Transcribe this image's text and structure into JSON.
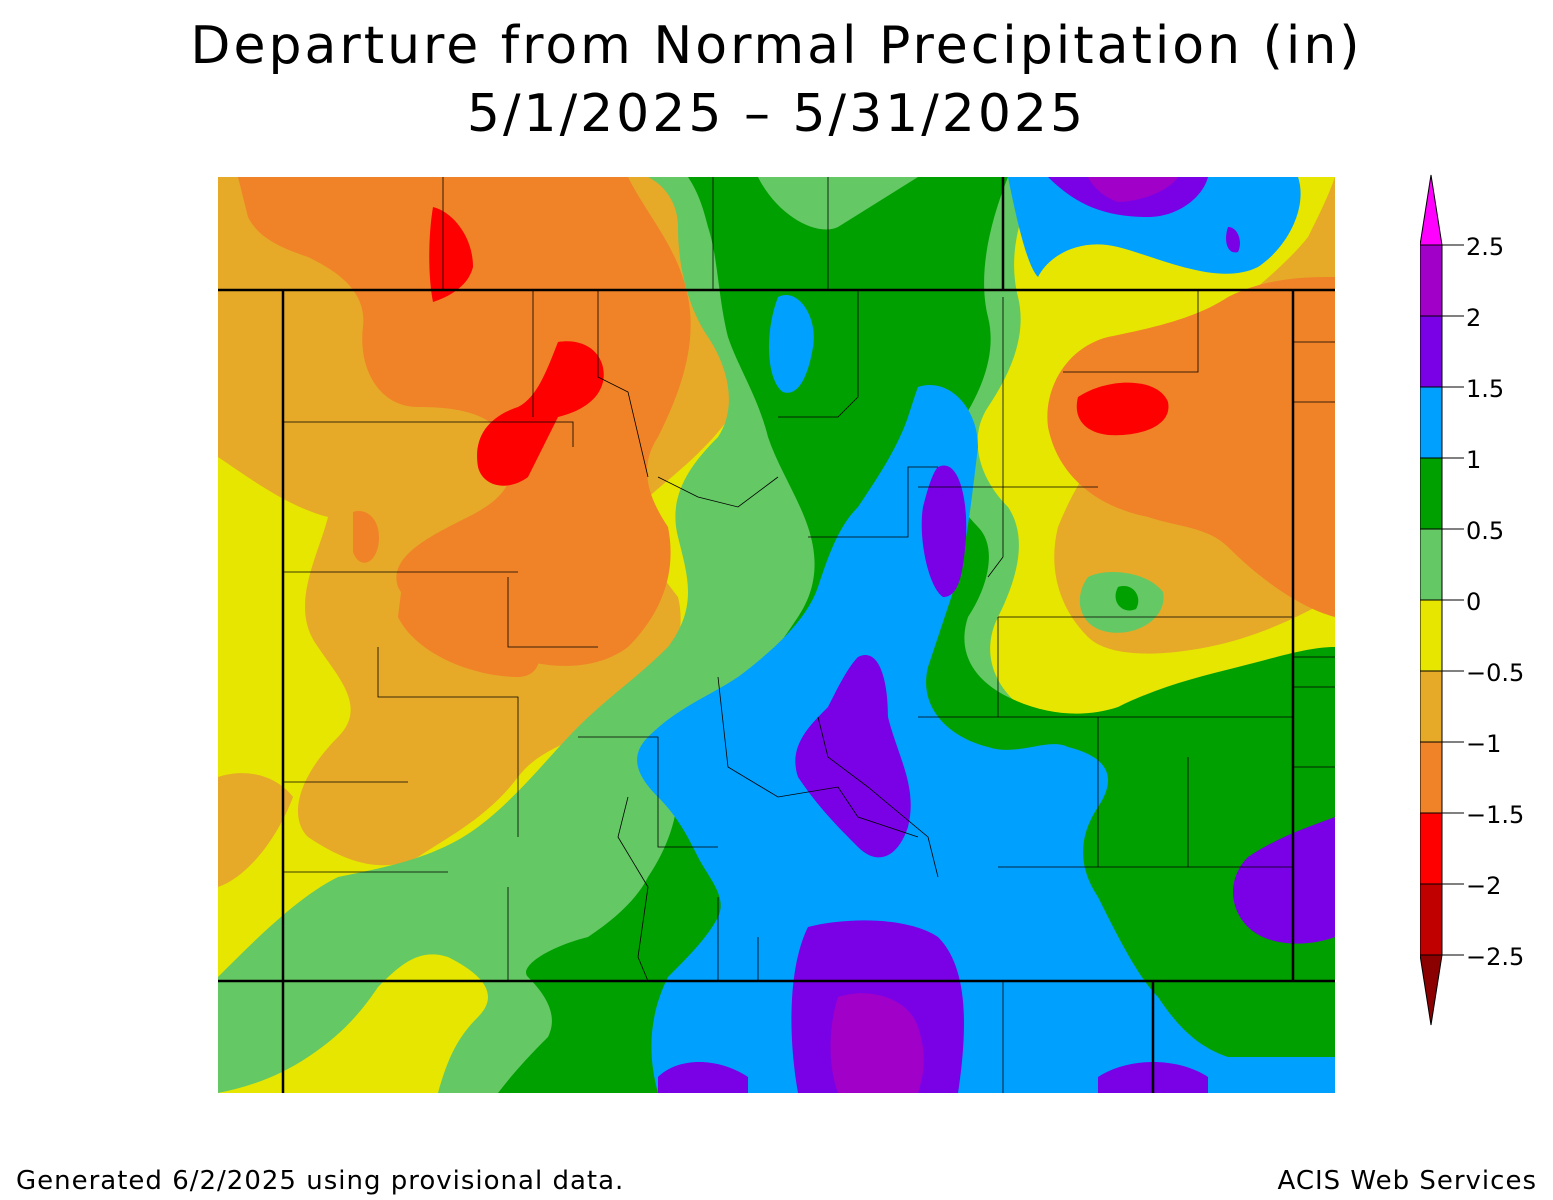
{
  "title": "Departure from Normal Precipitation (in)",
  "subtitle": "5/1/2025 – 5/31/2025",
  "footer_left": "Generated 6/2/2025 using provisional data.",
  "footer_right": "ACIS Web Services",
  "legend": {
    "ticks": [
      "2.5",
      "2",
      "1.5",
      "1",
      "0.5",
      "0",
      "−0.5",
      "−1",
      "−1.5",
      "−2",
      "−2.5"
    ],
    "bins": [
      {
        "range": "> 2.5",
        "color": "#ff00ff"
      },
      {
        "range": "2 to 2.5",
        "color": "#a000c8"
      },
      {
        "range": "1.5 to 2",
        "color": "#7a00e6"
      },
      {
        "range": "1 to 1.5",
        "color": "#00a0ff"
      },
      {
        "range": "0.5 to 1",
        "color": "#00a000"
      },
      {
        "range": "0 to 0.5",
        "color": "#64c864"
      },
      {
        "range": "-0.5 to 0",
        "color": "#e6e600"
      },
      {
        "range": "-1 to -0.5",
        "color": "#e6aa28"
      },
      {
        "range": "-1.5 to -1",
        "color": "#f08228"
      },
      {
        "range": "-2 to -1.5",
        "color": "#ff0000"
      },
      {
        "range": "-2.5 to -2",
        "color": "#c00000"
      },
      {
        "range": "< -2.5",
        "color": "#8b0000"
      }
    ]
  },
  "colors": {
    "yellow": "#e6e600",
    "lightorange": "#e6aa28",
    "orange": "#f08228",
    "red": "#ff0000",
    "lightgreen": "#64c864",
    "green": "#00a000",
    "blue": "#00a0ff",
    "purple": "#7a00e6",
    "violet": "#a000c8"
  }
}
